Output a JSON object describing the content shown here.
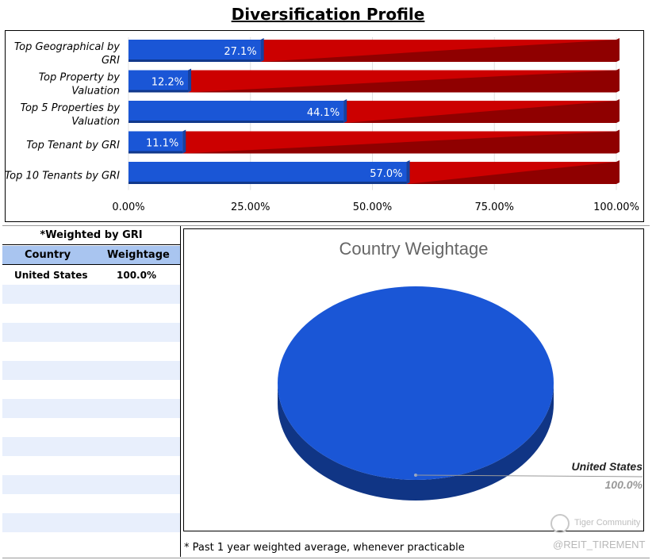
{
  "title": "Diversification Profile",
  "chart_data": [
    {
      "type": "bar",
      "orientation": "horizontal",
      "stacked_to_100": true,
      "categories": [
        "Top Geographical by GRI",
        "Top Property by Valuation",
        "Top 5 Properties by Valuation",
        "Top Tenant by GRI",
        "Top 10 Tenants by GRI"
      ],
      "category_label_lines": [
        [
          "Top Geographical by",
          "GRI"
        ],
        [
          "Top Property by",
          "Valuation"
        ],
        [
          "Top 5 Properties by",
          "Valuation"
        ],
        [
          "Top Tenant by GRI"
        ],
        [
          "Top 10 Tenants by GRI"
        ]
      ],
      "values": [
        27.1,
        12.2,
        44.1,
        11.1,
        57.0
      ],
      "data_labels": [
        "27.1%",
        "12.2%",
        "44.1%",
        "11.1%",
        "57.0%"
      ],
      "remainder_values": [
        72.9,
        87.8,
        55.9,
        88.9,
        43.0
      ],
      "xlim": [
        0,
        100
      ],
      "x_ticks": [
        "0.00%",
        "25.00%",
        "50.00%",
        "75.00%",
        "100.00%"
      ],
      "series_colors": {
        "value": "#1a56d6",
        "remainder": "#cc0000"
      },
      "grid": true
    },
    {
      "type": "pie",
      "title": "Country Weightage",
      "slices": [
        {
          "label": "United States",
          "value": 100.0,
          "value_label": "100.0%",
          "color": "#1a56d6"
        }
      ]
    }
  ],
  "weighted_note": "*Weighted by GRI",
  "table": {
    "headers": [
      "Country",
      "Weightage"
    ],
    "rows": [
      [
        "United States",
        "100.0%"
      ]
    ],
    "header_color": "#a9c5f0",
    "stripe_color": "#e8effc"
  },
  "footnote": "* Past 1 year weighted average, whenever practicable",
  "watermark": {
    "brand": "Tiger Community",
    "handle": "@REIT_TIREMENT"
  }
}
